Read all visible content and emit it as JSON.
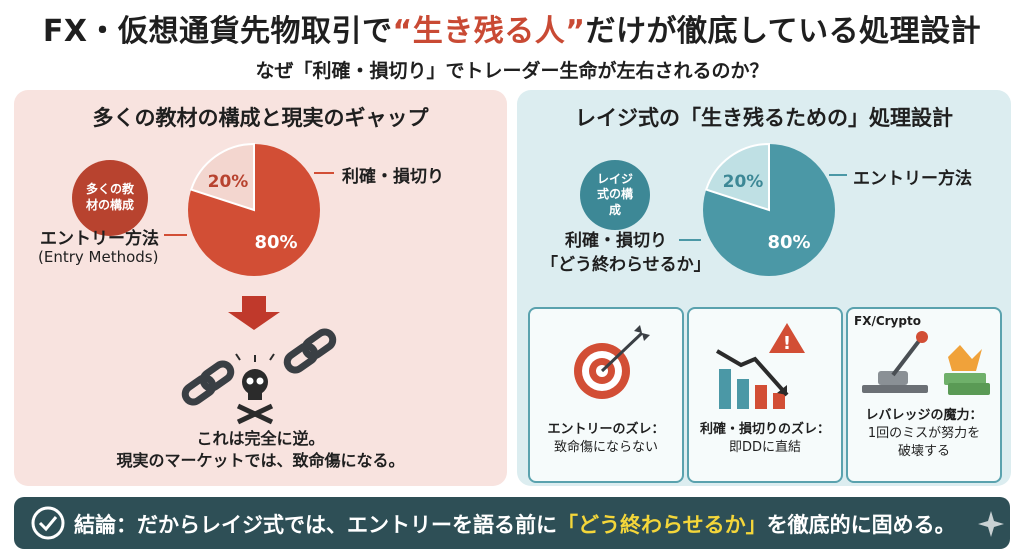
{
  "header": {
    "title_pre": "FX・仮想通貨先物取引で",
    "title_highlight": "“生き残る人”",
    "title_post": "だけが徹底している処理設計",
    "subtitle": "なぜ「利確・損切り」でトレーダー生命が左右されるのか？"
  },
  "left_panel": {
    "title": "多くの教材の構成と現実のギャップ",
    "badge": "多くの教材の構成",
    "pie": [
      {
        "label": "利確・損切り",
        "percent": 20,
        "percent_text": "20%"
      },
      {
        "label": "エントリー方法",
        "sublabel": "(Entry Methods)",
        "percent": 80,
        "percent_text": "80%"
      }
    ],
    "warning_line1": "これは完全に逆。",
    "warning_line2": "現実のマーケットでは、致命傷になる。"
  },
  "right_panel": {
    "title": "レイジ式の「生き残るための」処理設計",
    "badge": "レイジ式の構成",
    "pie": [
      {
        "label": "エントリー方法",
        "percent": 20,
        "percent_text": "20%"
      },
      {
        "label": "利確・損切り",
        "sublabel": "「どう終わらせるか」",
        "percent": 80,
        "percent_text": "80%"
      }
    ],
    "cards": [
      {
        "icon": "target-icon",
        "line1": "エントリーのズレ：",
        "line2": "致命傷にならない"
      },
      {
        "icon": "falling-chart-icon",
        "line1": "利確・損切りのズレ：",
        "line2": "即DDに直結"
      },
      {
        "icon": "lever-icon",
        "tag": "FX/Crypto",
        "line1": "レバレッジの魔力：",
        "line2": "1回のミスが努力を",
        "line3": "破壊する"
      }
    ]
  },
  "conclusion": {
    "pre": "結論：だからレイジ式では、エントリーを語る前に",
    "highlight": "「どう終わらせるか」",
    "post": "を徹底的に固める。"
  },
  "colors": {
    "red": "#d24e35",
    "red_dark": "#b8432f",
    "teal": "#4b98a6",
    "teal_light": "#a9d3d8",
    "highlight": "#f4d63a"
  }
}
